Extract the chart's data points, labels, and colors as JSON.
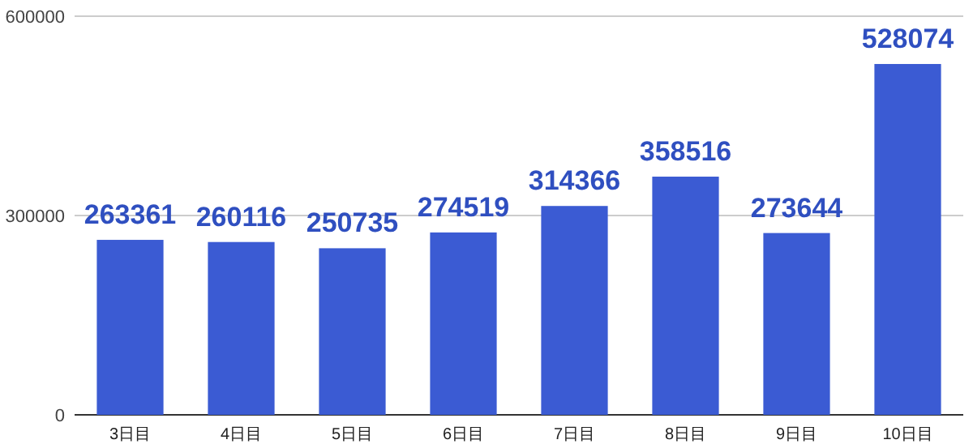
{
  "chart_data": {
    "type": "bar",
    "categories": [
      "3日目",
      "4日目",
      "5日目",
      "6日目",
      "7日目",
      "8日目",
      "9日目",
      "10日目"
    ],
    "values": [
      263361,
      260116,
      250735,
      274519,
      314366,
      358516,
      273644,
      528074
    ],
    "color": "#3b5bd3",
    "ylim": [
      0,
      600000
    ],
    "yticks": [
      0,
      300000,
      600000
    ],
    "grid": "y",
    "data_labels": true
  }
}
